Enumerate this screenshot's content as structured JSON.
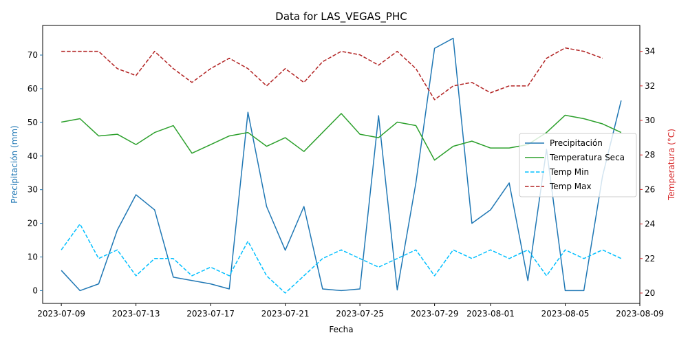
{
  "chart_data": {
    "type": "line",
    "title": "Data for LAS_VEGAS_PHC",
    "xlabel": "Fecha",
    "ylabel_left": "Precipitación (mm)",
    "ylabel_right": "Temperatura (°C)",
    "x_tick_labels": [
      "2023-07-09",
      "2023-07-13",
      "2023-07-17",
      "2023-07-21",
      "2023-07-25",
      "2023-07-29",
      "2023-08-01",
      "2023-08-05",
      "2023-08-09"
    ],
    "x_ticks": [
      "2023-07-09",
      "2023-07-13",
      "2023-07-17",
      "2023-07-21",
      "2023-07-25",
      "2023-07-29",
      "2023-08-01",
      "2023-08-05",
      "2023-08-09"
    ],
    "xlim": [
      "2023-07-08",
      "2023-08-09"
    ],
    "ylim_left": [
      -3.8,
      78.8
    ],
    "ylim_right": [
      19.4,
      35.5
    ],
    "left_ticks": [
      0,
      10,
      20,
      30,
      40,
      50,
      60,
      70
    ],
    "right_ticks": [
      20,
      22,
      24,
      26,
      28,
      30,
      32,
      34
    ],
    "legend_position": "center-right",
    "colors": {
      "left_axis": "#1f77b4",
      "right_axis": "#d62728"
    },
    "series": [
      {
        "name": "Precipitación",
        "axis": "left",
        "color": "#1f77b4",
        "dash": "solid",
        "x": [
          "2023-07-09",
          "2023-07-10",
          "2023-07-11",
          "2023-07-12",
          "2023-07-13",
          "2023-07-14",
          "2023-07-15",
          "2023-07-17",
          "2023-07-18",
          "2023-07-19",
          "2023-07-20",
          "2023-07-21",
          "2023-07-22",
          "2023-07-23",
          "2023-07-24",
          "2023-07-25",
          "2023-07-26",
          "2023-07-27",
          "2023-07-28",
          "2023-07-29",
          "2023-07-30",
          "2023-07-31",
          "2023-08-01",
          "2023-08-02",
          "2023-08-03",
          "2023-08-04",
          "2023-08-05",
          "2023-08-06",
          "2023-08-07",
          "2023-08-08"
        ],
        "values": [
          6,
          0,
          2,
          18,
          28.5,
          24,
          4,
          2,
          0.5,
          53,
          25,
          12,
          25,
          0.5,
          0,
          0.5,
          52,
          0.2,
          32,
          72,
          75,
          20,
          24,
          32,
          3,
          42,
          0,
          0,
          34,
          56.5
        ]
      },
      {
        "name": "Temperatura Seca",
        "axis": "right",
        "color": "#2ca02c",
        "dash": "solid",
        "x": [
          "2023-07-09",
          "2023-07-10",
          "2023-07-11",
          "2023-07-12",
          "2023-07-13",
          "2023-07-14",
          "2023-07-15",
          "2023-07-16",
          "2023-07-17",
          "2023-07-18",
          "2023-07-19",
          "2023-07-20",
          "2023-07-21",
          "2023-07-22",
          "2023-07-23",
          "2023-07-24",
          "2023-07-25",
          "2023-07-26",
          "2023-07-27",
          "2023-07-28",
          "2023-07-29",
          "2023-07-30",
          "2023-07-31",
          "2023-08-01",
          "2023-08-02",
          "2023-08-03",
          "2023-08-04",
          "2023-08-05",
          "2023-08-06",
          "2023-08-07",
          "2023-08-08"
        ],
        "values": [
          29.9,
          30.1,
          29.1,
          29.2,
          28.6,
          29.3,
          29.7,
          28.1,
          28.6,
          29.1,
          29.3,
          28.5,
          29,
          28.2,
          29.3,
          30.4,
          29.2,
          29,
          29.9,
          29.7,
          27.7,
          28.5,
          28.8,
          28.4,
          28.4,
          28.6,
          29.3,
          30.3,
          30.1,
          29.8,
          29.3
        ]
      },
      {
        "name": "Temp Min",
        "axis": "right",
        "color": "#00bfff",
        "dash": "dashed",
        "x": [
          "2023-07-09",
          "2023-07-10",
          "2023-07-11",
          "2023-07-12",
          "2023-07-13",
          "2023-07-14",
          "2023-07-15",
          "2023-07-16",
          "2023-07-17",
          "2023-07-18",
          "2023-07-19",
          "2023-07-20",
          "2023-07-21",
          "2023-07-22",
          "2023-07-23",
          "2023-07-24",
          "2023-07-25",
          "2023-07-26",
          "2023-07-27",
          "2023-07-28",
          "2023-07-29",
          "2023-07-30",
          "2023-07-31",
          "2023-08-01",
          "2023-08-02",
          "2023-08-03",
          "2023-08-04",
          "2023-08-05",
          "2023-08-06",
          "2023-08-07",
          "2023-08-08"
        ],
        "values": [
          22.5,
          24,
          22,
          22.5,
          21,
          22,
          22,
          21,
          21.5,
          21,
          23,
          21,
          20,
          21,
          22,
          22.5,
          22,
          21.5,
          22,
          22.5,
          21,
          22.5,
          22,
          22.5,
          22,
          22.5,
          21,
          22.5,
          22,
          22.5,
          22
        ]
      },
      {
        "name": "Temp Max",
        "axis": "right",
        "color": "#b22222",
        "dash": "dashed",
        "x": [
          "2023-07-09",
          "2023-07-10",
          "2023-07-11",
          "2023-07-12",
          "2023-07-13",
          "2023-07-14",
          "2023-07-15",
          "2023-07-16",
          "2023-07-17",
          "2023-07-18",
          "2023-07-19",
          "2023-07-20",
          "2023-07-21",
          "2023-07-22",
          "2023-07-23",
          "2023-07-24",
          "2023-07-25",
          "2023-07-26",
          "2023-07-27",
          "2023-07-28",
          "2023-07-29",
          "2023-07-30",
          "2023-07-31",
          "2023-08-01",
          "2023-08-02",
          "2023-08-03",
          "2023-08-04",
          "2023-08-05",
          "2023-08-06",
          "2023-08-07"
        ],
        "values": [
          34,
          34,
          34,
          33,
          32.6,
          34,
          33,
          32.2,
          33,
          33.6,
          33,
          32,
          33,
          32.2,
          33.4,
          34,
          33.8,
          33.2,
          34,
          33,
          31.2,
          32,
          32.2,
          31.6,
          32,
          32,
          33.6,
          34.2,
          34,
          33.6
        ]
      }
    ]
  }
}
